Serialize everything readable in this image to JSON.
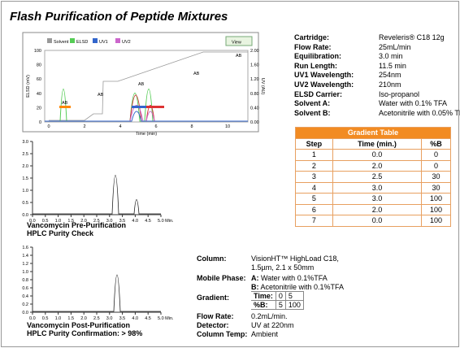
{
  "header": {
    "title": "Flash Purification of Peptide Mixtures"
  },
  "flash_chart": {
    "legend": [
      "Solvent %",
      "ELSD",
      "UV1",
      "UV2"
    ],
    "button": "View",
    "y_label": "ELSD (mV)",
    "y2_label": "UV (AU)",
    "x_label": "Time (min)",
    "yticks": [
      "100",
      "80",
      "60",
      "40",
      "20",
      "0"
    ],
    "y2ticks": [
      "2.00",
      "1.60",
      "1.20",
      "0.80",
      "0.40",
      "0.00"
    ],
    "xticks": [
      "0",
      "2",
      "4",
      "6",
      "8",
      "10"
    ],
    "annotations": [
      "AB",
      "AB",
      "AB",
      "AB",
      "AB"
    ]
  },
  "parameters": [
    {
      "label": "Cartridge:",
      "value": "Reveleris® C18 12g"
    },
    {
      "label": "Flow Rate:",
      "value": "25mL/min"
    },
    {
      "label": "Equilibration:",
      "value": "3.0 min"
    },
    {
      "label": "Run Length:",
      "value": "11.5 min"
    },
    {
      "label": "UV1 Wavelength:",
      "value": "254nm"
    },
    {
      "label": "UV2 Wavelength:",
      "value": "210nm"
    },
    {
      "label": "ELSD Carrier:",
      "value": "Iso-propanol"
    },
    {
      "label": "Solvent A:",
      "value": "Water with 0.1% TFA"
    },
    {
      "label": "Solvent B:",
      "value": "Acetonitrile with 0.05% TFA"
    }
  ],
  "gradient_table": {
    "title": "Gradient Table",
    "columns": [
      "Step",
      "Time (min.)",
      "%B"
    ],
    "rows": [
      [
        "1",
        "0.0",
        "0"
      ],
      [
        "2",
        "2.0",
        "0"
      ],
      [
        "3",
        "2.5",
        "30"
      ],
      [
        "4",
        "3.0",
        "30"
      ],
      [
        "5",
        "3.0",
        "100"
      ],
      [
        "6",
        "2.0",
        "100"
      ],
      [
        "7",
        "0.0",
        "100"
      ]
    ]
  },
  "pre_chart": {
    "yticks": [
      "3.0",
      "2.5",
      "2.0",
      "1.5",
      "1.0",
      "0.5",
      "0.0"
    ],
    "xticks": [
      "0.0",
      "0.5",
      "1.0",
      "1.5",
      "2.0",
      "2.5",
      "3.0",
      "3.5",
      "4.0",
      "4.5",
      "5.0 Min."
    ],
    "caption": [
      "Vancomycin Pre-Purification",
      "HPLC Purity Check"
    ]
  },
  "post_chart": {
    "yticks": [
      "1.6",
      "1.4",
      "1.2",
      "1.0",
      "0.8",
      "0.6",
      "0.4",
      "0.2",
      "0.0"
    ],
    "xticks": [
      "0.0",
      "0.5",
      "1.0",
      "1.5",
      "2.0",
      "2.5",
      "3.0",
      "3.5",
      "4.0",
      "4.5",
      "5.0 Min."
    ],
    "caption": [
      "Vancomycin Post-Purification",
      "HPLC Purity Confirmation: > 98%"
    ]
  },
  "hplc_conditions": {
    "column_label": "Column:",
    "column": [
      "VisionHT™ HighLoad C18,",
      "1.5µm, 2.1 x 50mm"
    ],
    "mobile_label": "Mobile Phase:",
    "mobile": [
      {
        "prefix": "A:",
        "text": "Water with 0.1%TFA"
      },
      {
        "prefix": "B:",
        "text": "Acetonitrile with 0.1%TFA"
      }
    ],
    "gradient_label": "Gradient:",
    "gradient": [
      [
        "Time:",
        "0",
        "5"
      ],
      [
        "%B:",
        "5",
        "100"
      ]
    ],
    "flow_label": "Flow Rate:",
    "flow": "0.2mL/min.",
    "detector_label": "Detector:",
    "detector": "UV at 220nm",
    "temp_label": "Column Temp:",
    "temp": "Ambient"
  }
}
